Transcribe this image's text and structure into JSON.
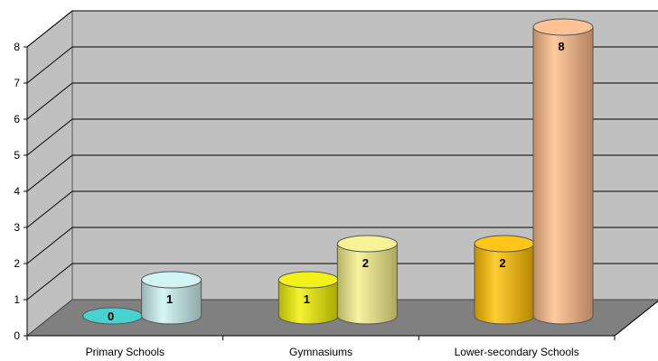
{
  "chart_data": {
    "type": "bar",
    "title": "",
    "xlabel": "",
    "ylabel": "",
    "ylim": [
      0,
      8
    ],
    "yticks": [
      0,
      1,
      2,
      3,
      4,
      5,
      6,
      7,
      8
    ],
    "grid": true,
    "style": "3d-cylinder",
    "categories": [
      "Primary Schools",
      "Gymnasiums",
      "Lower-secondary Schools"
    ],
    "bars": [
      {
        "category": 0,
        "slot": 0,
        "value": 0,
        "label": "0",
        "color": "#33cccc"
      },
      {
        "category": 0,
        "slot": 1,
        "value": 1,
        "label": "1",
        "color": "#ccf2f2"
      },
      {
        "category": 1,
        "slot": 0,
        "value": 1,
        "label": "1",
        "color": "#f0f000"
      },
      {
        "category": 1,
        "slot": 1,
        "value": 2,
        "label": "2",
        "color": "#f5f08a"
      },
      {
        "category": 2,
        "slot": 0,
        "value": 2,
        "label": "2",
        "color": "#ffc000"
      },
      {
        "category": 2,
        "slot": 1,
        "value": 8,
        "label": "8",
        "color": "#ffbb88"
      }
    ],
    "colors": {
      "wall": "#c0c0c0",
      "floor": "#808080",
      "gridline": "#000000"
    }
  }
}
